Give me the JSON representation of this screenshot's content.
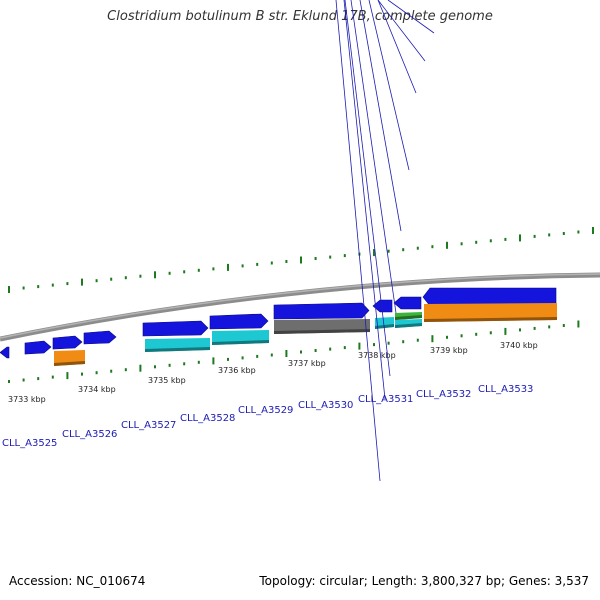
{
  "title": "Clostridium botulinum B str. Eklund 17B, complete genome",
  "footer": {
    "accession": "Accession: NC_010674",
    "topology": "Topology: circular; Length: 3,800,327 bp; Genes: 3,537"
  },
  "colors": {
    "forward_cds": "#1414dc",
    "reverse_cds": "#1ec8d2",
    "gray_feature": "#6e6e6e",
    "orange_feature": "#f08c14",
    "green_feature": "#3cb43c",
    "backbone": "#8c8c8c",
    "tick": "#1e7a1e",
    "locus_label": "#1c1cb4"
  },
  "kbp_ticks": [
    "3733 kbp",
    "3734 kbp",
    "3735 kbp",
    "3736 kbp",
    "3737 kbp",
    "3738 kbp",
    "3739 kbp",
    "3740 kbp"
  ],
  "loci": [
    "CLL_A3525",
    "CLL_A3526",
    "CLL_A3527",
    "CLL_A3528",
    "CLL_A3529",
    "CLL_A3530",
    "CLL_A3531",
    "CLL_A3532",
    "CLL_A3533"
  ]
}
